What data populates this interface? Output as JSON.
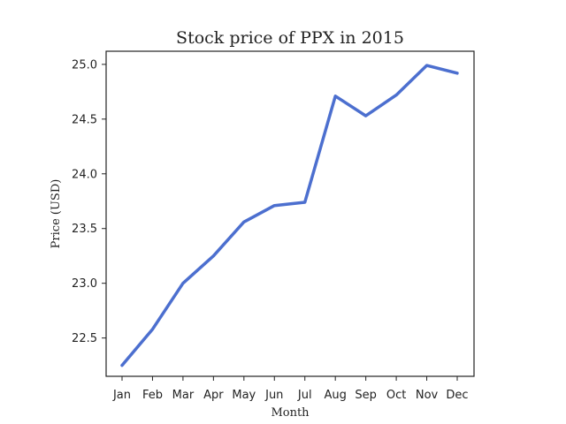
{
  "chart_data": {
    "type": "line",
    "title": "Stock price of PPX in 2015",
    "xlabel": "Month",
    "ylabel": "Price (USD)",
    "categories": [
      "Jan",
      "Feb",
      "Mar",
      "Apr",
      "May",
      "Jun",
      "Jul",
      "Aug",
      "Sep",
      "Oct",
      "Nov",
      "Dec"
    ],
    "series": [
      {
        "values": [
          22.25,
          22.58,
          23.0,
          23.25,
          23.56,
          23.71,
          23.74,
          24.71,
          24.53,
          24.72,
          24.99,
          24.92
        ],
        "color": "#4c6fcf"
      }
    ],
    "yticks": [
      "22.5",
      "23.0",
      "23.5",
      "24.0",
      "24.5",
      "25.0"
    ],
    "ylim": [
      22.15,
      25.12
    ],
    "grid": false,
    "legend": "none"
  }
}
